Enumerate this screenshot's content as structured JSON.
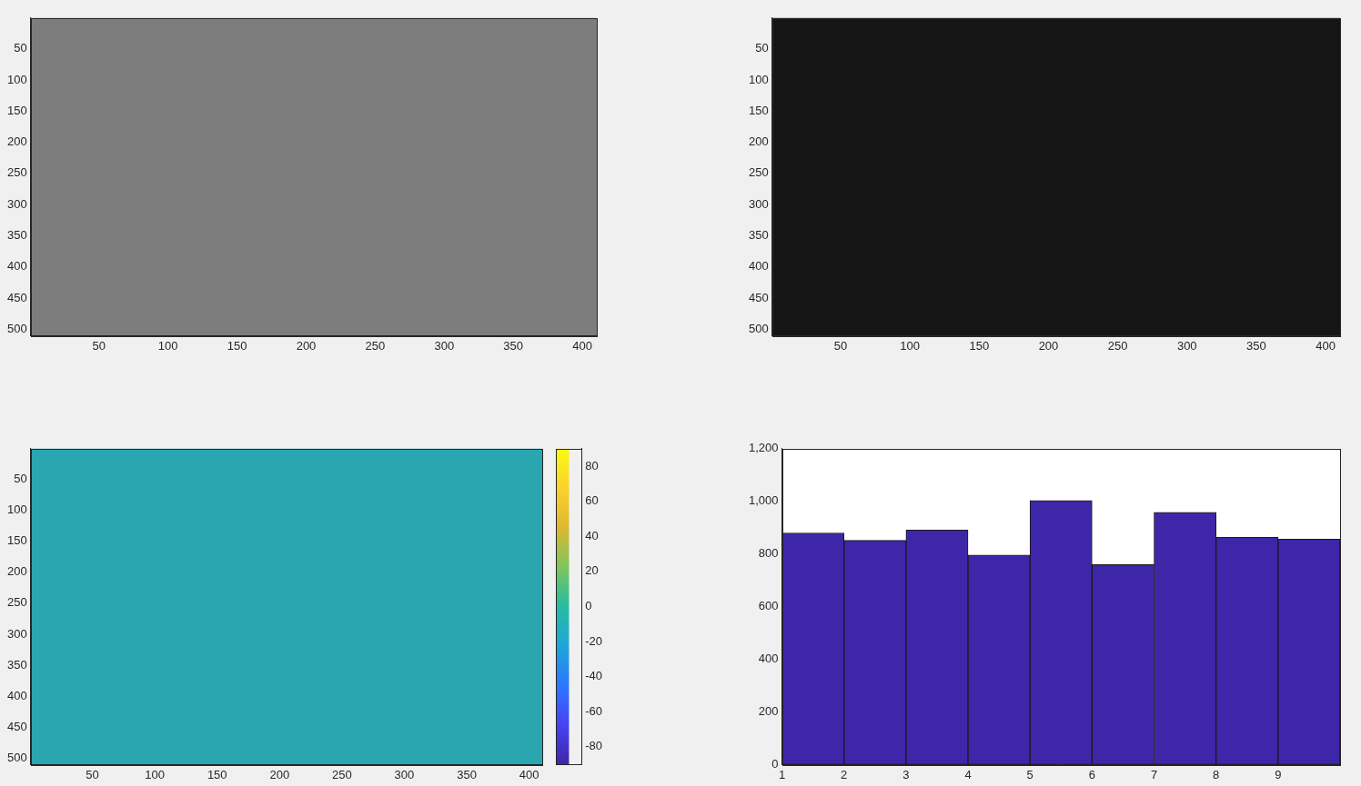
{
  "chart_data": [
    {
      "type": "image",
      "xlim": [
        0.5,
        410.5
      ],
      "ylim": [
        0.5,
        510.5
      ],
      "xticks": [
        50,
        100,
        150,
        200,
        250,
        300,
        350,
        400
      ],
      "yticks": [
        50,
        100,
        150,
        200,
        250,
        300,
        350,
        400,
        450,
        500
      ]
    },
    {
      "type": "image",
      "xlim": [
        0.5,
        410.5
      ],
      "ylim": [
        0.5,
        510.5
      ],
      "xticks": [
        50,
        100,
        150,
        200,
        250,
        300,
        350,
        400
      ],
      "yticks": [
        50,
        100,
        150,
        200,
        250,
        300,
        350,
        400,
        450,
        500
      ]
    },
    {
      "type": "image",
      "xlim": [
        0.5,
        410.5
      ],
      "ylim": [
        0.5,
        510.5
      ],
      "xticks": [
        50,
        100,
        150,
        200,
        250,
        300,
        350,
        400
      ],
      "yticks": [
        50,
        100,
        150,
        200,
        250,
        300,
        350,
        400,
        450,
        500
      ],
      "colorbar": {
        "range": [
          -90,
          90
        ],
        "ticks": [
          -80,
          -60,
          -40,
          -20,
          0,
          20,
          40,
          60,
          80
        ]
      }
    },
    {
      "type": "histogram",
      "bins": [
        1,
        2,
        3,
        4,
        5,
        6,
        7,
        8,
        9,
        10
      ],
      "values": [
        880,
        852,
        891,
        796,
        1003,
        760,
        958,
        863,
        856
      ],
      "color": "#3e26a8",
      "xlim": [
        1,
        10
      ],
      "xticks": [
        1,
        2,
        3,
        4,
        5,
        6,
        7,
        8,
        9
      ],
      "ylim": [
        0,
        1200
      ],
      "yticks": [
        0,
        200,
        400,
        600,
        800,
        1000,
        1200
      ],
      "grid": false
    }
  ]
}
